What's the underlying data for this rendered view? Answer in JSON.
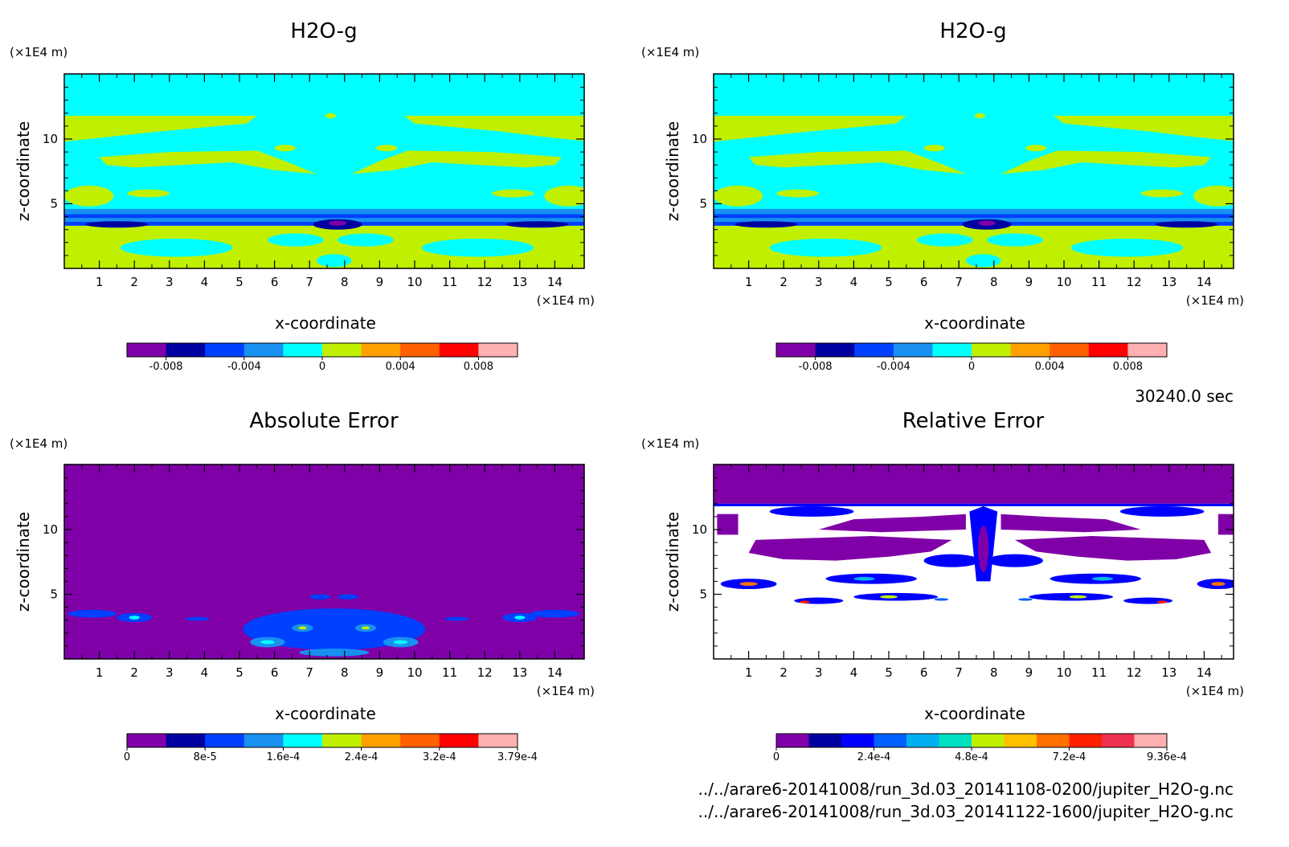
{
  "panels": [
    {
      "title": "H2O-g",
      "kind": "field",
      "z_unit": "(×1E4 m)",
      "x_unit": "(×1E4 m)",
      "xlabel": "x-coordinate",
      "ylabel": "z-coordinate",
      "x_ticks": [
        "1",
        "2",
        "3",
        "4",
        "5",
        "6",
        "7",
        "8",
        "9",
        "10",
        "11",
        "12",
        "13",
        "14"
      ],
      "y_ticks": [
        "5",
        "10"
      ],
      "colorbar": {
        "colors": [
          "#8000a8",
          "#0000a0",
          "#0040ff",
          "#1890f0",
          "#00ffff",
          "#c0f000",
          "#ffa000",
          "#ff6000",
          "#ff0000",
          "#ffb0b0"
        ],
        "labels": [
          "-0.008",
          "-0.004",
          "0",
          "0.004",
          "0.008"
        ]
      }
    },
    {
      "title": "H2O-g",
      "kind": "field",
      "z_unit": "(×1E4 m)",
      "x_unit": "(×1E4 m)",
      "xlabel": "x-coordinate",
      "ylabel": "z-coordinate",
      "x_ticks": [
        "1",
        "2",
        "3",
        "4",
        "5",
        "6",
        "7",
        "8",
        "9",
        "10",
        "11",
        "12",
        "13",
        "14"
      ],
      "y_ticks": [
        "5",
        "10"
      ],
      "colorbar": {
        "colors": [
          "#8000a8",
          "#0000a0",
          "#0040ff",
          "#1890f0",
          "#00ffff",
          "#c0f000",
          "#ffa000",
          "#ff6000",
          "#ff0000",
          "#ffb0b0"
        ],
        "labels": [
          "-0.008",
          "-0.004",
          "0",
          "0.004",
          "0.008"
        ]
      }
    },
    {
      "title": "Absolute Error",
      "kind": "abs",
      "z_unit": "(×1E4 m)",
      "x_unit": "(×1E4 m)",
      "xlabel": "x-coordinate",
      "ylabel": "z-coordinate",
      "x_ticks": [
        "1",
        "2",
        "3",
        "4",
        "5",
        "6",
        "7",
        "8",
        "9",
        "10",
        "11",
        "12",
        "13",
        "14"
      ],
      "y_ticks": [
        "5",
        "10"
      ],
      "colorbar": {
        "colors": [
          "#8000a8",
          "#0000a0",
          "#0040ff",
          "#1890f0",
          "#00ffff",
          "#c0f000",
          "#ffa000",
          "#ff6000",
          "#ff0000",
          "#ffb0b0"
        ],
        "labels": [
          "0",
          "8e-5",
          "1.6e-4",
          "2.4e-4",
          "3.2e-4",
          "3.79e-4"
        ]
      }
    },
    {
      "title": "Relative Error",
      "kind": "rel",
      "z_unit": "(×1E4 m)",
      "x_unit": "(×1E4 m)",
      "xlabel": "x-coordinate",
      "ylabel": "z-coordinate",
      "x_ticks": [
        "1",
        "2",
        "3",
        "4",
        "5",
        "6",
        "7",
        "8",
        "9",
        "10",
        "11",
        "12",
        "13",
        "14"
      ],
      "y_ticks": [
        "5",
        "10"
      ],
      "colorbar": {
        "colors": [
          "#8000a8",
          "#0000a0",
          "#0000ff",
          "#0060ff",
          "#00b0f0",
          "#00e0c0",
          "#c0f000",
          "#ffc000",
          "#ff7000",
          "#ff2000",
          "#f03050",
          "#ffb0b0"
        ],
        "labels": [
          "0",
          "2.4e-4",
          "4.8e-4",
          "7.2e-4",
          "9.36e-4"
        ]
      }
    }
  ],
  "time_label": "30240.0 sec",
  "files": [
    "../../arare6-20141008/run_3d.03_20141108-0200/jupiter_H2O-g.nc",
    "../../arare6-20141008/run_3d.03_20141122-1600/jupiter_H2O-g.nc"
  ],
  "chart_data": [
    {
      "type": "heatmap",
      "title": "H2O-g",
      "xlabel": "x-coordinate",
      "ylabel": "z-coordinate",
      "x_unit": "(×1E4 m)",
      "z_unit": "(×1E4 m)",
      "xlim": [
        0,
        15
      ],
      "ylim": [
        0,
        15
      ],
      "colorbar_range": [
        -0.01,
        0.01
      ],
      "colorbar_ticks": [
        -0.008,
        -0.004,
        0,
        0.004,
        0.008
      ]
    },
    {
      "type": "heatmap",
      "title": "H2O-g",
      "xlabel": "x-coordinate",
      "ylabel": "z-coordinate",
      "x_unit": "(×1E4 m)",
      "z_unit": "(×1E4 m)",
      "xlim": [
        0,
        15
      ],
      "ylim": [
        0,
        15
      ],
      "colorbar_range": [
        -0.01,
        0.01
      ],
      "colorbar_ticks": [
        -0.008,
        -0.004,
        0,
        0.004,
        0.008
      ]
    },
    {
      "type": "heatmap",
      "title": "Absolute Error",
      "xlabel": "x-coordinate",
      "ylabel": "z-coordinate",
      "xlim": [
        0,
        15
      ],
      "ylim": [
        0,
        15
      ],
      "colorbar_range": [
        0,
        0.000379
      ],
      "colorbar_ticks": [
        0,
        8e-05,
        0.00016,
        0.00024,
        0.00032,
        0.000379
      ]
    },
    {
      "type": "heatmap",
      "title": "Relative Error",
      "xlabel": "x-coordinate",
      "ylabel": "z-coordinate",
      "xlim": [
        0,
        15
      ],
      "ylim": [
        0,
        15
      ],
      "colorbar_range": [
        0,
        0.000936
      ],
      "colorbar_ticks": [
        0,
        0.00024,
        0.00048,
        0.00072,
        0.000936
      ]
    }
  ]
}
